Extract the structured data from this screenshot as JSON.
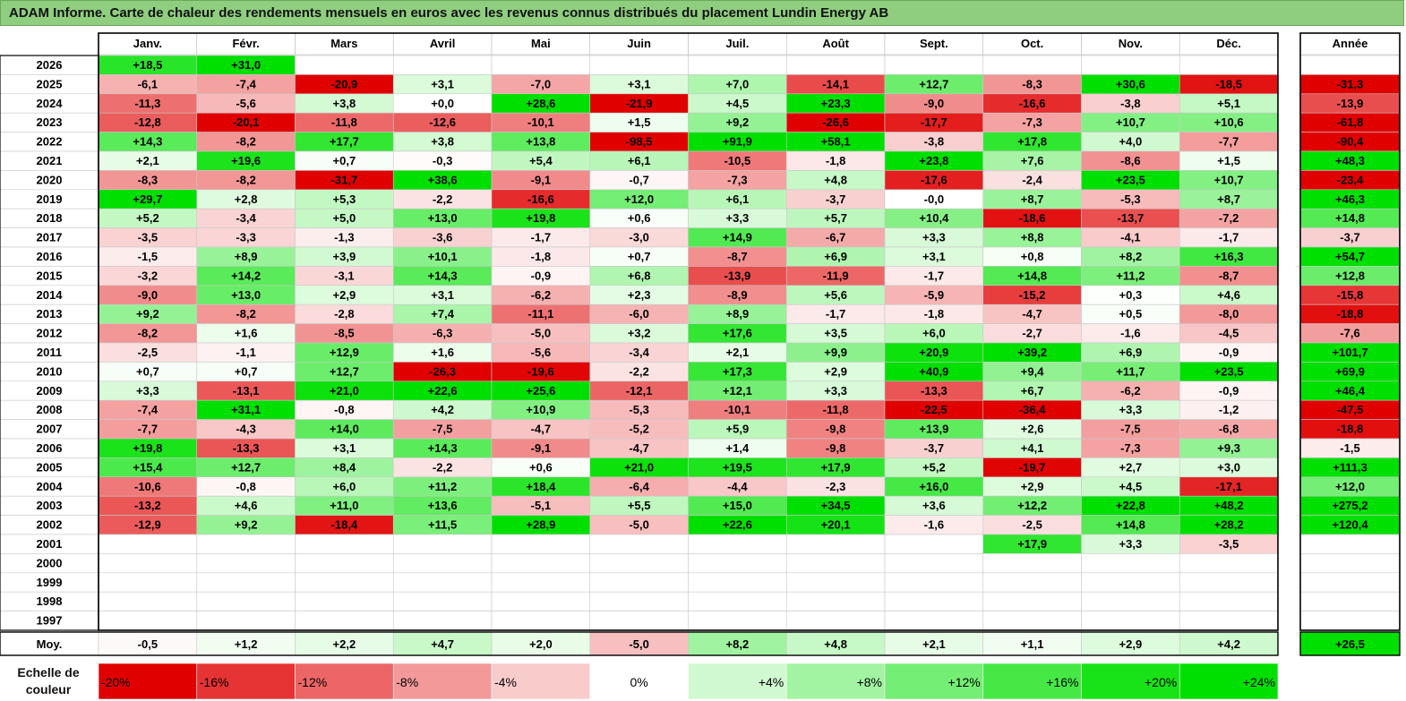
{
  "title": "ADAM Informe. Carte de chaleur des rendements mensuels en euros avec les revenus connus distribués du placement Lundin Energy AB",
  "legend_label": "Echelle de couleur",
  "colors": {
    "title_bg": "#8fce7f",
    "positive_max": "#00e000",
    "negative_max": "#e00000",
    "neutral": "#ffffff"
  },
  "chart_data": {
    "type": "heatmap",
    "month_labels": [
      "Janv.",
      "Févr.",
      "Mars",
      "Avril",
      "Mai",
      "Juin",
      "Juil.",
      "Août",
      "Sept.",
      "Oct.",
      "Nov.",
      "Déc."
    ],
    "year_column_label": "Année",
    "average_row_label": "Moy.",
    "rows": [
      {
        "year": "2026",
        "months": [
          "+18,5",
          "+31,0",
          "",
          "",
          "",
          "",
          "",
          "",
          "",
          "",
          "",
          ""
        ],
        "total": ""
      },
      {
        "year": "2025",
        "months": [
          "-6,1",
          "-7,4",
          "-20,9",
          "+3,1",
          "-7,0",
          "+3,1",
          "+7,0",
          "-14,1",
          "+12,7",
          "-8,3",
          "+30,6",
          "-18,5"
        ],
        "total": "-31,3"
      },
      {
        "year": "2024",
        "months": [
          "-11,3",
          "-5,6",
          "+3,8",
          "+0,0",
          "+28,6",
          "-21,9",
          "+4,5",
          "+23,3",
          "-9,0",
          "-16,6",
          "-3,8",
          "+5,1"
        ],
        "total": "-13,9"
      },
      {
        "year": "2023",
        "months": [
          "-12,8",
          "-20,1",
          "-11,8",
          "-12,6",
          "-10,1",
          "+1,5",
          "+9,2",
          "-26,6",
          "-17,7",
          "-7,3",
          "+10,7",
          "+10,6"
        ],
        "total": "-61,8"
      },
      {
        "year": "2022",
        "months": [
          "+14,3",
          "-8,2",
          "+17,7",
          "+3,8",
          "+13,8",
          "-98,5",
          "+91,9",
          "+58,1",
          "-3,8",
          "+17,8",
          "+4,0",
          "-7,7"
        ],
        "total": "-90,4"
      },
      {
        "year": "2021",
        "months": [
          "+2,1",
          "+19,6",
          "+0,7",
          "-0,3",
          "+5,4",
          "+6,1",
          "-10,5",
          "-1,8",
          "+23,8",
          "+7,6",
          "-8,6",
          "+1,5"
        ],
        "total": "+48,3"
      },
      {
        "year": "2020",
        "months": [
          "-8,3",
          "-8,2",
          "-31,7",
          "+38,6",
          "-9,1",
          "-0,7",
          "-7,3",
          "+4,8",
          "-17,6",
          "-2,4",
          "+23,5",
          "+10,7"
        ],
        "total": "-23,4"
      },
      {
        "year": "2019",
        "months": [
          "+29,7",
          "+2,8",
          "+5,3",
          "-2,2",
          "-16,6",
          "+12,0",
          "+6,1",
          "-3,7",
          "-0,0",
          "+8,7",
          "-5,3",
          "+8,7"
        ],
        "total": "+46,3"
      },
      {
        "year": "2018",
        "months": [
          "+5,2",
          "-3,4",
          "+5,0",
          "+13,0",
          "+19,8",
          "+0,6",
          "+3,3",
          "+5,7",
          "+10,4",
          "-18,6",
          "-13,7",
          "-7,2"
        ],
        "total": "+14,8"
      },
      {
        "year": "2017",
        "months": [
          "-3,5",
          "-3,3",
          "-1,3",
          "-3,6",
          "-1,7",
          "-3,0",
          "+14,9",
          "-6,7",
          "+3,3",
          "+8,8",
          "-4,1",
          "-1,7"
        ],
        "total": "-3,7"
      },
      {
        "year": "2016",
        "months": [
          "-1,5",
          "+8,9",
          "+3,9",
          "+10,1",
          "-1,8",
          "+0,7",
          "-8,7",
          "+6,9",
          "+3,1",
          "+0,8",
          "+8,2",
          "+16,3"
        ],
        "total": "+54,7"
      },
      {
        "year": "2015",
        "months": [
          "-3,2",
          "+14,2",
          "-3,1",
          "+14,3",
          "-0,9",
          "+6,8",
          "-13,9",
          "-11,9",
          "-1,7",
          "+14,8",
          "+11,2",
          "-8,7"
        ],
        "total": "+12,8"
      },
      {
        "year": "2014",
        "months": [
          "-9,0",
          "+13,0",
          "+2,9",
          "+3,1",
          "-6,2",
          "+2,3",
          "-8,9",
          "+5,6",
          "-5,9",
          "-15,2",
          "+0,3",
          "+4,6"
        ],
        "total": "-15,8"
      },
      {
        "year": "2013",
        "months": [
          "+9,2",
          "-8,2",
          "-2,8",
          "+7,4",
          "-11,1",
          "-6,0",
          "+8,9",
          "-1,7",
          "-1,8",
          "-4,7",
          "+0,5",
          "-8,0"
        ],
        "total": "-18,8"
      },
      {
        "year": "2012",
        "months": [
          "-8,2",
          "+1,6",
          "-8,5",
          "-6,3",
          "-5,0",
          "+3,2",
          "+17,6",
          "+3,5",
          "+6,0",
          "-2,7",
          "-1,6",
          "-4,5"
        ],
        "total": "-7,6"
      },
      {
        "year": "2011",
        "months": [
          "-2,5",
          "-1,1",
          "+12,9",
          "+1,6",
          "-5,6",
          "-3,4",
          "+2,1",
          "+9,9",
          "+20,9",
          "+39,2",
          "+6,9",
          "-0,9"
        ],
        "total": "+101,7"
      },
      {
        "year": "2010",
        "months": [
          "+0,7",
          "+0,7",
          "+12,7",
          "-26,3",
          "-19,6",
          "-2,2",
          "+17,3",
          "+2,9",
          "+40,9",
          "+9,4",
          "+11,7",
          "+23,5"
        ],
        "total": "+69,9"
      },
      {
        "year": "2009",
        "months": [
          "+3,3",
          "-13,1",
          "+21,0",
          "+22,6",
          "+25,6",
          "-12,1",
          "+12,1",
          "+3,3",
          "-13,3",
          "+6,7",
          "-6,2",
          "-0,9"
        ],
        "total": "+46,4"
      },
      {
        "year": "2008",
        "months": [
          "-7,4",
          "+31,1",
          "-0,8",
          "+4,2",
          "+10,9",
          "-5,3",
          "-10,1",
          "-11,8",
          "-22,5",
          "-36,4",
          "+3,3",
          "-1,2"
        ],
        "total": "-47,5"
      },
      {
        "year": "2007",
        "months": [
          "-7,7",
          "-4,3",
          "+14,0",
          "-7,5",
          "-4,7",
          "-5,2",
          "+5,9",
          "-9,8",
          "+13,9",
          "+2,6",
          "-7,5",
          "-6,8"
        ],
        "total": "-18,8"
      },
      {
        "year": "2006",
        "months": [
          "+19,8",
          "-13,3",
          "+3,1",
          "+14,3",
          "-9,1",
          "-4,7",
          "+1,4",
          "-9,8",
          "-3,7",
          "+4,1",
          "-7,3",
          "+9,3"
        ],
        "total": "-1,5"
      },
      {
        "year": "2005",
        "months": [
          "+15,4",
          "+12,7",
          "+8,4",
          "-2,2",
          "+0,6",
          "+21,0",
          "+19,5",
          "+17,9",
          "+5,2",
          "-19,7",
          "+2,7",
          "+3,0"
        ],
        "total": "+111,3"
      },
      {
        "year": "2004",
        "months": [
          "-10,6",
          "-0,8",
          "+6,0",
          "+11,2",
          "+18,4",
          "-6,4",
          "-4,4",
          "-2,3",
          "+16,0",
          "+2,9",
          "+4,5",
          "-17,1"
        ],
        "total": "+12,0"
      },
      {
        "year": "2003",
        "months": [
          "-13,2",
          "+4,6",
          "+11,0",
          "+13,6",
          "-5,1",
          "+5,5",
          "+15,0",
          "+34,5",
          "+3,6",
          "+12,2",
          "+22,8",
          "+48,2"
        ],
        "total": "+275,2"
      },
      {
        "year": "2002",
        "months": [
          "-12,9",
          "+9,2",
          "-18,4",
          "+11,5",
          "+28,9",
          "-5,0",
          "+22,6",
          "+20,1",
          "-1,6",
          "-2,5",
          "+14,8",
          "+28,2"
        ],
        "total": "+120,4"
      },
      {
        "year": "2001",
        "months": [
          "",
          "",
          "",
          "",
          "",
          "",
          "",
          "",
          "",
          "+17,9",
          "+3,3",
          "-3,5"
        ],
        "total": ""
      },
      {
        "year": "2000",
        "months": [
          "",
          "",
          "",
          "",
          "",
          "",
          "",
          "",
          "",
          "",
          "",
          ""
        ],
        "total": ""
      },
      {
        "year": "1999",
        "months": [
          "",
          "",
          "",
          "",
          "",
          "",
          "",
          "",
          "",
          "",
          "",
          ""
        ],
        "total": ""
      },
      {
        "year": "1998",
        "months": [
          "",
          "",
          "",
          "",
          "",
          "",
          "",
          "",
          "",
          "",
          "",
          ""
        ],
        "total": ""
      },
      {
        "year": "1997",
        "months": [
          "",
          "",
          "",
          "",
          "",
          "",
          "",
          "",
          "",
          "",
          "",
          ""
        ],
        "total": ""
      }
    ],
    "average": {
      "months": [
        "-0,5",
        "+1,2",
        "+2,2",
        "+4,7",
        "+2,0",
        "-5,0",
        "+8,2",
        "+4,8",
        "+2,1",
        "+1,1",
        "+2,9",
        "+4,2"
      ],
      "total": "+26,5"
    },
    "color_scale": [
      "-20%",
      "-16%",
      "-12%",
      "-8%",
      "-4%",
      "0%",
      "+4%",
      "+8%",
      "+12%",
      "+16%",
      "+20%",
      "+24%"
    ]
  }
}
